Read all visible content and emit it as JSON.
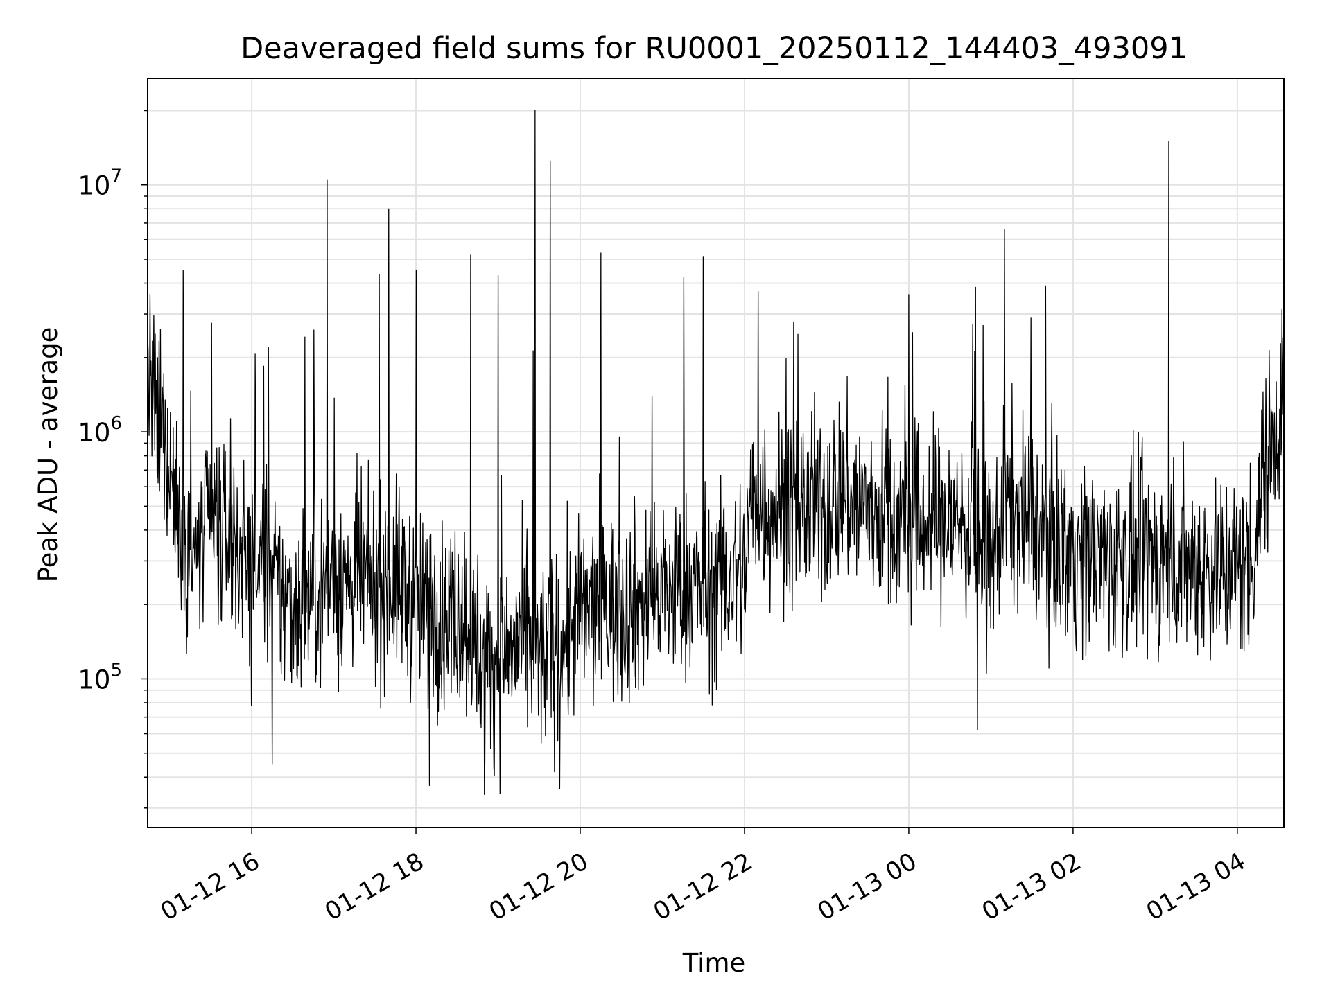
{
  "chart_data": {
    "type": "line",
    "title": "Deaveraged field sums for RU0001_20250112_144403_493091",
    "xlabel": "Time",
    "ylabel": "Peak ADU - average",
    "yscale": "log",
    "ylim": [
      25000,
      27000000
    ],
    "xlim": [
      "2025-01-12 14:44",
      "2025-01-13 04:34"
    ],
    "grid": true,
    "x_ticks": [
      {
        "label": "01-12 16",
        "time": "2025-01-12 16:00"
      },
      {
        "label": "01-12 18",
        "time": "2025-01-12 18:00"
      },
      {
        "label": "01-12 20",
        "time": "2025-01-12 20:00"
      },
      {
        "label": "01-12 22",
        "time": "2025-01-12 22:00"
      },
      {
        "label": "01-13 00",
        "time": "2025-01-13 00:00"
      },
      {
        "label": "01-13 02",
        "time": "2025-01-13 02:00"
      },
      {
        "label": "01-13 04",
        "time": "2025-01-13 04:00"
      }
    ],
    "y_ticks": [
      {
        "base": "10",
        "exp": "5",
        "value": 100000
      },
      {
        "base": "10",
        "exp": "6",
        "value": 1000000
      },
      {
        "base": "10",
        "exp": "7",
        "value": 10000000
      }
    ],
    "series": [
      {
        "color": "#000000",
        "points": [
          [
            "2025-01-12 14:44",
            1800000
          ],
          [
            "2025-01-12 14:50",
            1100000
          ],
          [
            "2025-01-12 15:00",
            800000
          ],
          [
            "2025-01-12 15:10",
            350000
          ],
          [
            "2025-01-12 15:20",
            300000
          ],
          [
            "2025-01-12 15:30",
            450000
          ],
          [
            "2025-01-12 15:40",
            380000
          ],
          [
            "2025-01-12 15:50",
            350000
          ],
          [
            "2025-01-12 16:00",
            280000
          ],
          [
            "2025-01-12 16:10",
            300000
          ],
          [
            "2025-01-12 16:20",
            220000
          ],
          [
            "2025-01-12 16:30",
            200000
          ],
          [
            "2025-01-12 16:40",
            220000
          ],
          [
            "2025-01-12 16:50",
            230000
          ],
          [
            "2025-01-12 17:00",
            260000
          ],
          [
            "2025-01-12 17:10",
            240000
          ],
          [
            "2025-01-12 17:20",
            250000
          ],
          [
            "2025-01-12 17:30",
            230000
          ],
          [
            "2025-01-12 17:40",
            250000
          ],
          [
            "2025-01-12 17:50",
            240000
          ],
          [
            "2025-01-12 18:00",
            200000
          ],
          [
            "2025-01-12 18:10",
            190000
          ],
          [
            "2025-01-12 18:20",
            180000
          ],
          [
            "2025-01-12 18:30",
            190000
          ],
          [
            "2025-01-12 18:40",
            160000
          ],
          [
            "2025-01-12 18:50",
            110000
          ],
          [
            "2025-01-12 19:00",
            120000
          ],
          [
            "2025-01-12 19:10",
            130000
          ],
          [
            "2025-01-12 19:20",
            140000
          ],
          [
            "2025-01-12 19:30",
            120000
          ],
          [
            "2025-01-12 19:40",
            130000
          ],
          [
            "2025-01-12 19:50",
            150000
          ],
          [
            "2025-01-12 20:00",
            180000
          ],
          [
            "2025-01-12 20:10",
            190000
          ],
          [
            "2025-01-12 20:20",
            200000
          ],
          [
            "2025-01-12 20:30",
            190000
          ],
          [
            "2025-01-12 20:40",
            200000
          ],
          [
            "2025-01-12 20:50",
            210000
          ],
          [
            "2025-01-12 21:00",
            220000
          ],
          [
            "2025-01-12 21:10",
            230000
          ],
          [
            "2025-01-12 21:20",
            240000
          ],
          [
            "2025-01-12 21:30",
            230000
          ],
          [
            "2025-01-12 21:40",
            240000
          ],
          [
            "2025-01-12 21:50",
            250000
          ],
          [
            "2025-01-12 22:00",
            280000
          ],
          [
            "2025-01-12 22:05",
            520000
          ],
          [
            "2025-01-12 22:20",
            500000
          ],
          [
            "2025-01-12 22:40",
            480000
          ],
          [
            "2025-01-12 23:00",
            500000
          ],
          [
            "2025-01-12 23:10",
            600000
          ],
          [
            "2025-01-12 23:20",
            520000
          ],
          [
            "2025-01-12 23:40",
            470000
          ],
          [
            "2025-01-13 00:00",
            420000
          ],
          [
            "2025-01-13 00:20",
            450000
          ],
          [
            "2025-01-13 00:40",
            430000
          ],
          [
            "2025-01-13 00:50",
            330000
          ],
          [
            "2025-01-13 01:00",
            280000
          ],
          [
            "2025-01-13 01:10",
            500000
          ],
          [
            "2025-01-13 01:20",
            480000
          ],
          [
            "2025-01-13 01:40",
            380000
          ],
          [
            "2025-01-13 02:00",
            330000
          ],
          [
            "2025-01-13 02:20",
            310000
          ],
          [
            "2025-01-13 02:40",
            300000
          ],
          [
            "2025-01-13 03:00",
            310000
          ],
          [
            "2025-01-13 03:20",
            300000
          ],
          [
            "2025-01-13 03:40",
            290000
          ],
          [
            "2025-01-13 04:00",
            280000
          ],
          [
            "2025-01-13 04:10",
            300000
          ],
          [
            "2025-01-13 04:20",
            700000
          ],
          [
            "2025-01-13 04:34",
            1500000
          ]
        ],
        "spikes": [
          [
            "2025-01-12 15:10",
            4500000
          ],
          [
            "2025-01-12 16:55",
            10500000
          ],
          [
            "2025-01-12 17:40",
            8000000
          ],
          [
            "2025-01-12 18:00",
            4500000
          ],
          [
            "2025-01-12 18:40",
            5200000
          ],
          [
            "2025-01-12 19:00",
            4300000
          ],
          [
            "2025-01-12 19:27",
            20000000
          ],
          [
            "2025-01-12 19:38",
            12500000
          ],
          [
            "2025-01-12 20:15",
            5300000
          ],
          [
            "2025-01-12 21:30",
            5100000
          ],
          [
            "2025-01-12 22:10",
            3700000
          ],
          [
            "2025-01-13 00:00",
            3600000
          ],
          [
            "2025-01-13 01:10",
            6600000
          ],
          [
            "2025-01-13 01:40",
            3900000
          ],
          [
            "2025-01-13 03:10",
            15000000
          ]
        ],
        "dips": [
          [
            "2025-01-12 16:15",
            45000
          ],
          [
            "2025-01-12 18:10",
            37000
          ],
          [
            "2025-01-12 18:50",
            34000
          ],
          [
            "2025-01-12 19:45",
            36000
          ],
          [
            "2025-01-13 00:50",
            62000
          ]
        ]
      }
    ]
  }
}
